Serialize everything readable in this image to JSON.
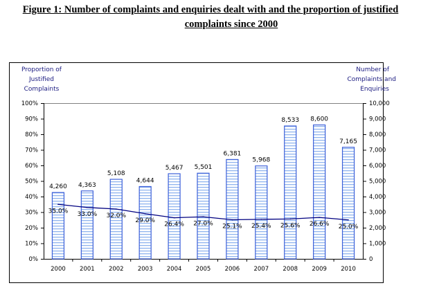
{
  "chart_data": {
    "type": "bar",
    "title_line1": "Figure 1:  Number of complaints and enquiries dealt with and the proportion of justified",
    "title_line2": "complaints since 2000",
    "categories": [
      "2000",
      "2001",
      "2002",
      "2003",
      "2004",
      "2005",
      "2006",
      "2007",
      "2008",
      "2009",
      "2010"
    ],
    "series": [
      {
        "name": "Number of Complaints and Enquiries",
        "type": "bar",
        "axis": "right",
        "values": [
          4260,
          4363,
          5108,
          4644,
          5467,
          5501,
          6381,
          5968,
          8533,
          8600,
          7165
        ],
        "labels": [
          "4,260",
          "4,363",
          "5,108",
          "4,644",
          "5,467",
          "5,501",
          "6,381",
          "5,968",
          "8,533",
          "8,600",
          "7,165"
        ]
      },
      {
        "name": "Proportion of Justified Complaints",
        "type": "line",
        "axis": "left",
        "values": [
          35.0,
          33.0,
          32.0,
          29.0,
          26.4,
          27.0,
          25.1,
          25.4,
          25.6,
          26.6,
          25.0
        ],
        "labels": [
          "35.0%",
          "33.0%",
          "32.0%",
          "29.0%",
          "26.4%",
          "27.0%",
          "25.1%",
          "25.4%",
          "25.6%",
          "26.6%",
          "25.0%"
        ]
      }
    ],
    "left_axis": {
      "label_lines": [
        "Proportion of",
        "Justified",
        "Complaints"
      ],
      "range": [
        0,
        100
      ],
      "ticks": [
        "0%",
        "10%",
        "20%",
        "30%",
        "40%",
        "50%",
        "60%",
        "70%",
        "80%",
        "90%",
        "100%"
      ]
    },
    "right_axis": {
      "label_lines": [
        "Number of",
        "Complaints and",
        "Enquiries"
      ],
      "range": [
        0,
        10000
      ],
      "ticks": [
        "0",
        "1,000",
        "2,000",
        "3,000",
        "4,000",
        "5,000",
        "6,000",
        "7,000",
        "8,000",
        "9,000",
        "10,000"
      ]
    },
    "grid": false,
    "legend": "none",
    "colors": {
      "bar_border": "#3b5fd9",
      "bar_stripe": "#8fb4ee",
      "line": "#000080",
      "axis_title": "#1a1a80"
    }
  }
}
